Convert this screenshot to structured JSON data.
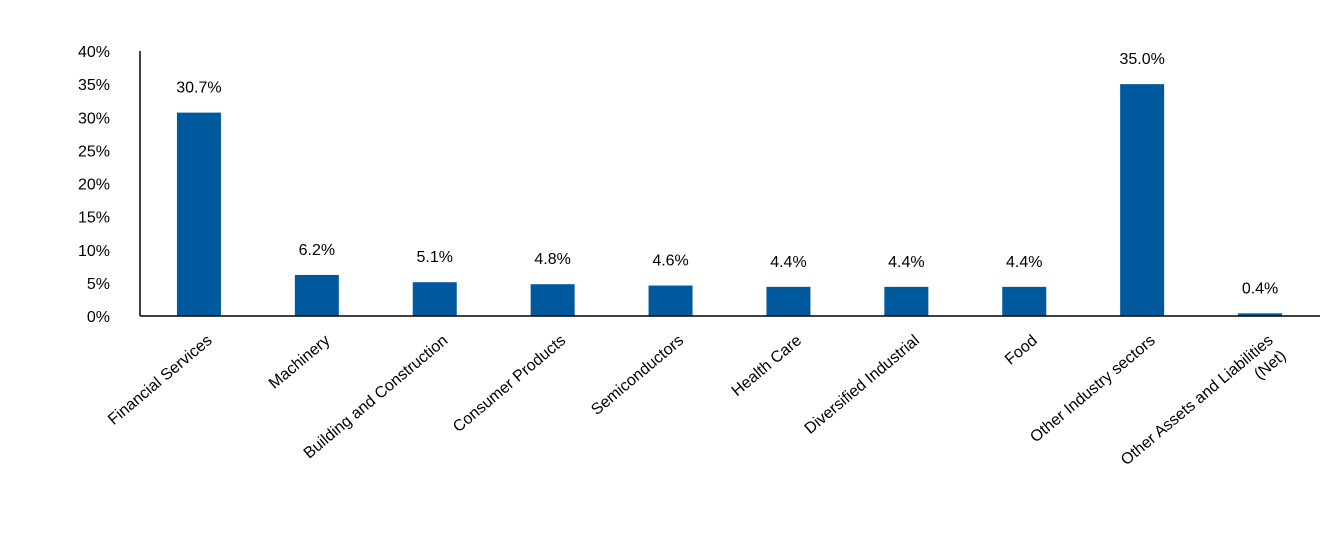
{
  "chart_data": {
    "type": "bar",
    "categories": [
      "Financial Services",
      "Machinery",
      "Building and Construction",
      "Consumer Products",
      "Semiconductors",
      "Health Care",
      "Diversified Industrial",
      "Food",
      "Other Industry sectors",
      "Other Assets and Liabilities (Net)"
    ],
    "values": [
      30.7,
      6.2,
      5.1,
      4.8,
      4.6,
      4.4,
      4.4,
      4.4,
      35.0,
      0.4
    ],
    "data_labels": [
      "30.7%",
      "6.2%",
      "5.1%",
      "4.8%",
      "4.6%",
      "4.4%",
      "4.4%",
      "4.4%",
      "35.0%",
      "0.4%"
    ],
    "y_ticks": [
      "0%",
      "5%",
      "10%",
      "15%",
      "20%",
      "25%",
      "30%",
      "35%",
      "40%"
    ],
    "ylim": [
      0,
      40
    ],
    "title": "",
    "xlabel": "",
    "ylabel": "",
    "grid": false,
    "legend": "none",
    "bar_color": "#00599C",
    "axis_color": "#000000"
  }
}
